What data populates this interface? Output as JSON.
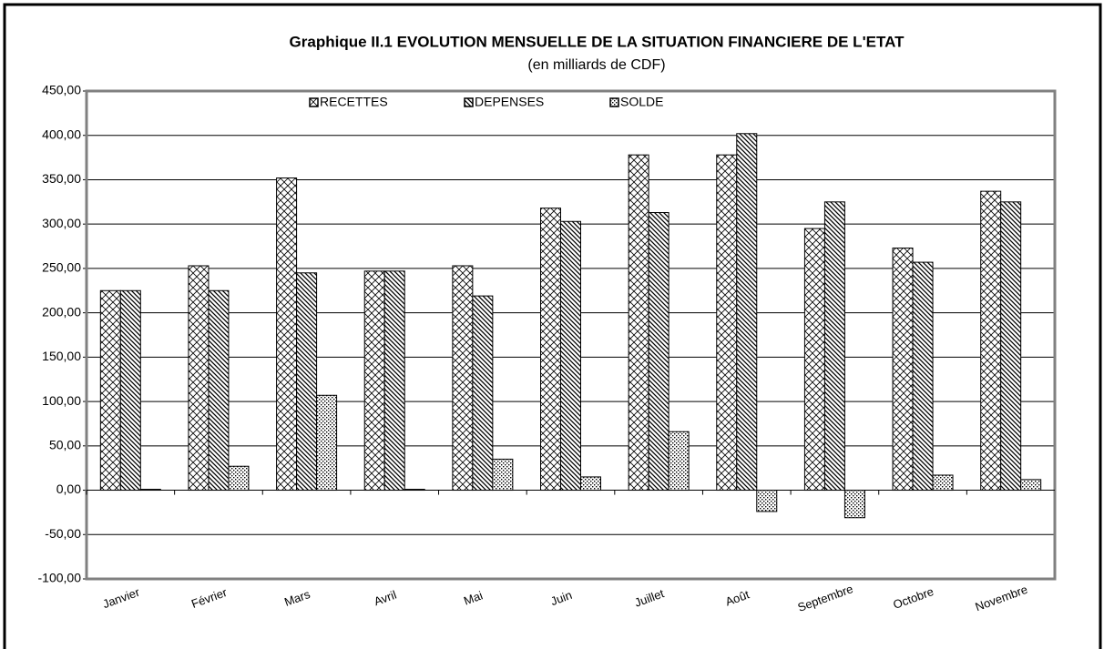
{
  "chart_data": {
    "type": "bar",
    "title": "Graphique II.1  EVOLUTION MENSUELLE DE LA SITUATION FINANCIERE DE L'ETAT",
    "subtitle": "(en milliards de CDF)",
    "categories": [
      "Janvier",
      "Février",
      "Mars",
      "Avril",
      "Mai",
      "Juin",
      "Juillet",
      "Août",
      "Septembre",
      "Octobre",
      "Novembre"
    ],
    "series": [
      {
        "name": "RECETTES",
        "color": "#000000",
        "pattern": "crosshatch",
        "values": [
          225,
          253,
          352,
          247,
          253,
          318,
          378,
          378,
          295,
          273,
          337
        ]
      },
      {
        "name": "DEPENSES",
        "color": "#000000",
        "pattern": "diagonal",
        "values": [
          225,
          225,
          245,
          247,
          219,
          303,
          313,
          402,
          325,
          257,
          325
        ]
      },
      {
        "name": "SOLDE",
        "color": "#000000",
        "pattern": "dots",
        "values": [
          1,
          27,
          107,
          1,
          35,
          15,
          66,
          -24,
          -31,
          17,
          12
        ]
      }
    ],
    "ylim": [
      -100,
      450
    ],
    "yticks": [
      {
        "value": -100,
        "label": "-100,00"
      },
      {
        "value": -50,
        "label": "-50,00"
      },
      {
        "value": 0,
        "label": "0,00"
      },
      {
        "value": 50,
        "label": "50,00"
      },
      {
        "value": 100,
        "label": "100,00"
      },
      {
        "value": 150,
        "label": "150,00"
      },
      {
        "value": 200,
        "label": "200,00"
      },
      {
        "value": 250,
        "label": "250,00"
      },
      {
        "value": 300,
        "label": "300,00"
      },
      {
        "value": 350,
        "label": "350,00"
      },
      {
        "value": 400,
        "label": "400,00"
      },
      {
        "value": 450,
        "label": "450,00"
      }
    ],
    "grid": true,
    "legend": "top"
  }
}
